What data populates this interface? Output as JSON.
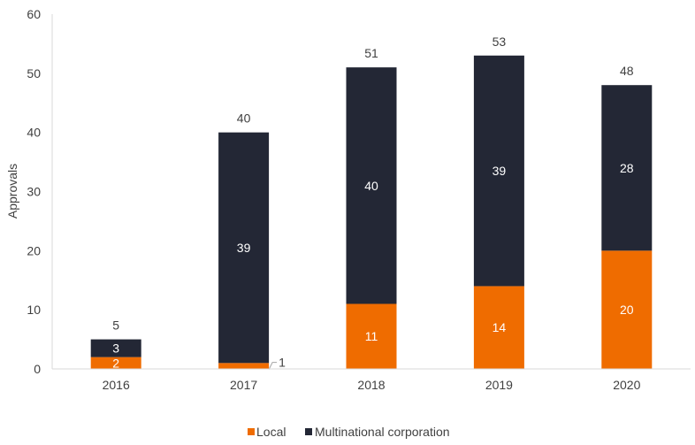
{
  "chart_data": {
    "type": "bar",
    "stacked": true,
    "title": "",
    "xlabel": "",
    "ylabel": "Approvals",
    "ylim": [
      0,
      60
    ],
    "yticks": [
      0,
      10,
      20,
      30,
      40,
      50,
      60
    ],
    "grid": false,
    "legend_position": "bottom",
    "categories": [
      "2016",
      "2017",
      "2018",
      "2019",
      "2020"
    ],
    "series": [
      {
        "name": "Local",
        "values": [
          2,
          1,
          11,
          14,
          20
        ],
        "color": "#ef6c00"
      },
      {
        "name": "Multinational corporation",
        "values": [
          3,
          39,
          40,
          39,
          28
        ],
        "color": "#232735"
      }
    ],
    "totals": [
      5,
      40,
      51,
      53,
      48
    ]
  }
}
